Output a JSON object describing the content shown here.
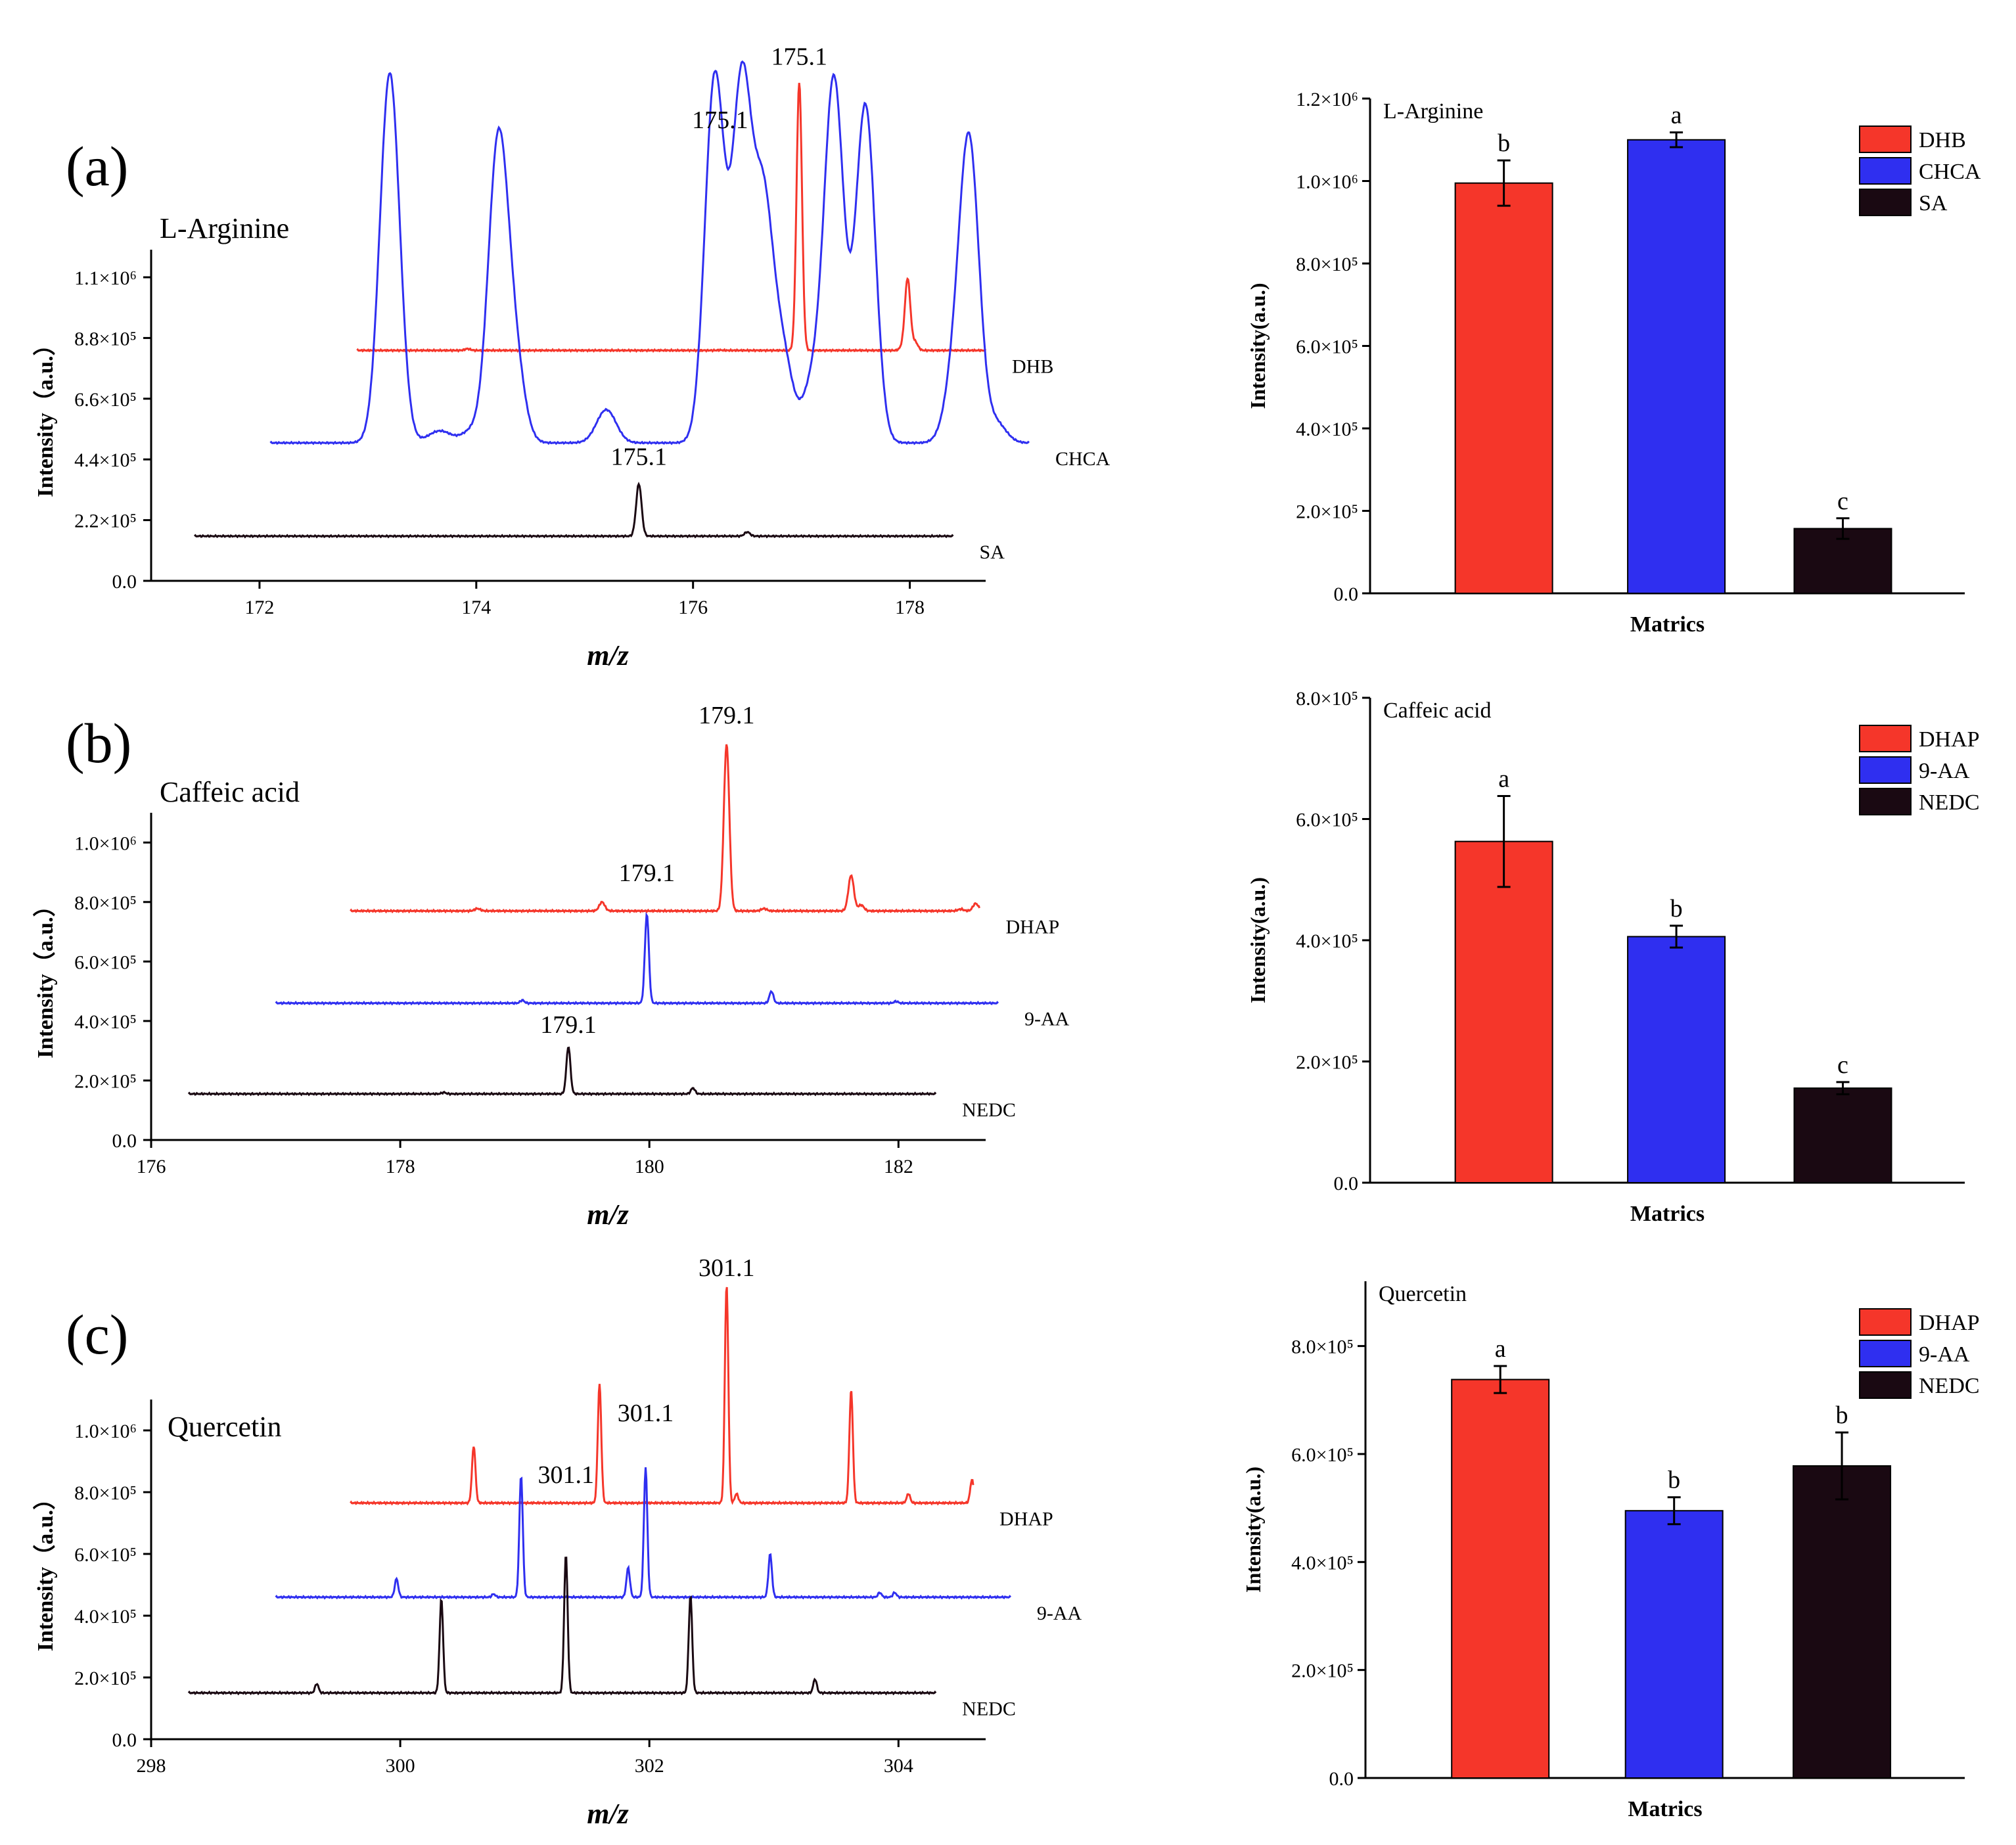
{
  "colors": {
    "red": "#f5362a",
    "blue": "#2f2ff0",
    "black": "#1a0912"
  },
  "panels": [
    {
      "label": "(a)",
      "compound": "L-Arginine",
      "spectrum": {
        "xlabel": "m/z",
        "ylabel": "Intensity（a.u.）",
        "xlim": [
          171,
          178.7
        ],
        "ylim": [
          0,
          1200000
        ],
        "xticks": [
          "172",
          "174",
          "176",
          "178"
        ],
        "xtick_values": [
          172,
          174,
          176,
          178
        ],
        "yticks": [
          "0.0",
          "2.2×10⁵",
          "4.4×10⁵",
          "6.6×10⁵",
          "8.8×10⁵",
          "1.1×10⁶"
        ],
        "ytick_values": [
          0,
          220000,
          440000,
          660000,
          880000,
          1100000
        ],
        "traces": [
          {
            "name": "DHB",
            "color": "red",
            "x_start": 172.9,
            "x_end": 178.7,
            "baseline": 835000,
            "width": 0.025,
            "peaks": [
              [
                173.92,
                6000
              ],
              [
                176.25,
                1000
              ],
              [
                176.98,
                970000
              ],
              [
                177.93,
                10000
              ],
              [
                177.98,
                260000
              ],
              [
                178.05,
                30000
              ],
              [
                178.82,
                60000
              ],
              [
                178.9,
                20000
              ]
            ],
            "peak_label": {
              "text": "175.1",
              "x": 176.98,
              "y": 1870000
            }
          },
          {
            "name": "CHCA",
            "color": "blue",
            "x_start": 172.1,
            "x_end": 179.1,
            "baseline": 500000,
            "width": 0.09,
            "peaks": [
              [
                173.2,
                1280000
              ],
              [
                173.25,
                70000
              ],
              [
                173.6,
                20000
              ],
              [
                173.7,
                30000
              ],
              [
                173.95,
                40000
              ],
              [
                174.2,
                1060000
              ],
              [
                174.35,
                290000
              ],
              [
                175.2,
                120000
              ],
              [
                176.2,
                1320000
              ],
              [
                176.45,
                1280000
              ],
              [
                176.65,
                830000
              ],
              [
                176.83,
                300000
              ],
              [
                177.3,
                1310000
              ],
              [
                177.1,
                200000
              ],
              [
                177.58,
                590000
              ],
              [
                177.6,
                640000
              ],
              [
                178.41,
                200000
              ],
              [
                178.55,
                1060000
              ],
              [
                178.8,
                70000
              ]
            ],
            "peak_label": {
              "text": "175.1",
              "x": 176.25,
              "y": 1640000
            }
          },
          {
            "name": "SA",
            "color": "black",
            "x_start": 171.4,
            "x_end": 178.4,
            "baseline": 162000,
            "width": 0.025,
            "peaks": [
              [
                175.5,
                190000
              ],
              [
                176.5,
                15000
              ]
            ],
            "peak_label": {
              "text": "175.1",
              "x": 175.5,
              "y": 420000
            }
          }
        ]
      },
      "bars": {
        "xlabel": "Matrics",
        "ylabel": "Intensity(a.u.)",
        "ylim": [
          0,
          1200000
        ],
        "yticks": [
          "0.0",
          "2.0×10⁵",
          "4.0×10⁵",
          "6.0×10⁵",
          "8.0×10⁵",
          "1.0×10⁶",
          "1.2×10⁶"
        ],
        "ytick_values": [
          0,
          200000,
          400000,
          600000,
          800000,
          1000000,
          1200000
        ],
        "legend": [
          "DHB",
          "CHCA",
          "SA"
        ],
        "legend_position": "top-right",
        "values": [
          995000,
          1100000,
          157000
        ],
        "errors": [
          55000,
          18000,
          25000
        ],
        "letters": [
          "b",
          "a",
          "c"
        ]
      }
    },
    {
      "label": "(b)",
      "compound": "Caffeic acid",
      "spectrum": {
        "xlabel": "m/z",
        "ylabel": "Intensity（a.u.）",
        "xlim": [
          176,
          182.7
        ],
        "ylim": [
          0,
          1100000
        ],
        "xticks": [
          "176",
          "178",
          "180",
          "182"
        ],
        "xtick_values": [
          176,
          178,
          180,
          182
        ],
        "yticks": [
          "0.0",
          "2.0×10⁵",
          "4.0×10⁵",
          "6.0×10⁵",
          "8.0×10⁵",
          "1.0×10⁶"
        ],
        "ytick_values": [
          0,
          200000,
          400000,
          600000,
          800000,
          1000000
        ],
        "traces": [
          {
            "name": "DHAP",
            "color": "red",
            "x_start": 177.6,
            "x_end": 182.65,
            "baseline": 770000,
            "width": 0.022,
            "peaks": [
              [
                178.62,
                8000
              ],
              [
                179.62,
                30000
              ],
              [
                180.62,
                560000
              ],
              [
                180.92,
                8000
              ],
              [
                181.62,
                120000
              ],
              [
                181.7,
                20000
              ],
              [
                182.5,
                6000
              ],
              [
                182.62,
                25000
              ]
            ],
            "peak_label": {
              "text": "179.1",
              "x": 180.62,
              "y": 1400000
            }
          },
          {
            "name": "9-AA",
            "color": "blue",
            "x_start": 177,
            "x_end": 182.8,
            "baseline": 460000,
            "width": 0.016,
            "peaks": [
              [
                178.98,
                10000
              ],
              [
                179.98,
                300000
              ],
              [
                180.98,
                40000
              ],
              [
                181.98,
                6000
              ]
            ],
            "peak_label": {
              "text": "179.1",
              "x": 179.98,
              "y": 870000
            }
          },
          {
            "name": "NEDC",
            "color": "black",
            "x_start": 176.3,
            "x_end": 182.3,
            "baseline": 155000,
            "width": 0.016,
            "peaks": [
              [
                178.35,
                5000
              ],
              [
                179.35,
                160000
              ],
              [
                180.35,
                20000
              ]
            ],
            "peak_label": {
              "text": "179.1",
              "x": 179.35,
              "y": 360000
            }
          }
        ]
      },
      "bars": {
        "xlabel": "Matrics",
        "ylabel": "Intensity(a.u.)",
        "ylim": [
          0,
          800000
        ],
        "yticks": [
          "0.0",
          "2.0×10⁵",
          "4.0×10⁵",
          "6.0×10⁵",
          "8.0×10⁵"
        ],
        "ytick_values": [
          0,
          200000,
          400000,
          600000,
          800000
        ],
        "legend": [
          "DHAP",
          "9-AA",
          "NEDC"
        ],
        "legend_position": "top-right",
        "values": [
          563000,
          406000,
          156000
        ],
        "errors": [
          75000,
          18000,
          10000
        ],
        "letters": [
          "a",
          "b",
          "c"
        ]
      }
    },
    {
      "label": "(c)",
      "compound": "Quercetin",
      "spectrum": {
        "xlabel": "m/z",
        "ylabel": "Intensity（a.u.）",
        "xlim": [
          298,
          304.7
        ],
        "ylim": [
          0,
          1100000
        ],
        "xticks": [
          "298",
          "300",
          "302",
          "304"
        ],
        "xtick_values": [
          298,
          300,
          302,
          304
        ],
        "yticks": [
          "0.0",
          "2.0×10⁵",
          "4.0×10⁵",
          "6.0×10⁵",
          "8.0×10⁵",
          "1.0×10⁶"
        ],
        "ytick_values": [
          0,
          200000,
          400000,
          600000,
          800000,
          1000000
        ],
        "traces": [
          {
            "name": "DHAP",
            "color": "red",
            "x_start": 299.6,
            "x_end": 304.6,
            "baseline": 765000,
            "width": 0.014,
            "peaks": [
              [
                300.59,
                185000
              ],
              [
                301.6,
                385000
              ],
              [
                302.62,
                705000
              ],
              [
                302.7,
                30000
              ],
              [
                303.62,
                365000
              ],
              [
                304.08,
                30000
              ],
              [
                304.59,
                75000
              ]
            ],
            "peak_label": {
              "text": "301.1",
              "x": 302.62,
              "y": 1500000
            }
          },
          {
            "name": "9-AA",
            "color": "blue",
            "x_start": 299,
            "x_end": 304.9,
            "baseline": 460000,
            "width": 0.014,
            "peaks": [
              [
                299.97,
                60000
              ],
              [
                300.75,
                10000
              ],
              [
                300.97,
                395000
              ],
              [
                301.83,
                95000
              ],
              [
                301.97,
                420000
              ],
              [
                302.97,
                140000
              ],
              [
                303.85,
                15000
              ],
              [
                303.97,
                15000
              ]
            ],
            "peak_label": {
              "text": "301.1",
              "x": 301.97,
              "y": 1030000
            }
          },
          {
            "name": "NEDC",
            "color": "black",
            "x_start": 298.3,
            "x_end": 304.3,
            "baseline": 150000,
            "width": 0.014,
            "peaks": [
              [
                299.33,
                30000
              ],
              [
                300.33,
                305000
              ],
              [
                301.33,
                450000
              ],
              [
                302.33,
                315000
              ],
              [
                303.33,
                45000
              ]
            ],
            "peak_label": {
              "text": "301.1",
              "x": 301.33,
              "y": 830000
            }
          }
        ]
      },
      "bars": {
        "xlabel": "Matrics",
        "ylabel": "Intensity(a.u.)",
        "ylim": [
          0,
          920000
        ],
        "yticks": [
          "0.0",
          "2.0×10⁵",
          "4.0×10⁵",
          "6.0×10⁵",
          "8.0×10⁵"
        ],
        "ytick_values": [
          0,
          200000,
          400000,
          600000,
          800000
        ],
        "legend": [
          "DHAP",
          "9-AA",
          "NEDC"
        ],
        "legend_position": "top-right",
        "values": [
          738000,
          495000,
          578000
        ],
        "errors": [
          25000,
          25000,
          62000
        ],
        "letters": [
          "a",
          "b",
          "b"
        ]
      }
    }
  ],
  "chart_data": [
    {
      "type": "line",
      "panel": "(a)",
      "title": "L-Arginine",
      "xlabel": "m/z",
      "ylabel": "Intensity（a.u.）",
      "xlim": [
        171,
        178.7
      ],
      "ylim": [
        0,
        1200000
      ],
      "series": [
        {
          "name": "DHB",
          "base_peak_mz": 176.98
        },
        {
          "name": "CHCA",
          "base_peak_mz": 176.25
        },
        {
          "name": "SA",
          "base_peak_mz": 175.5
        }
      ],
      "annotations": [
        "175.1",
        "175.1",
        "175.1"
      ]
    },
    {
      "type": "bar",
      "panel": "(a)",
      "title": "L-Arginine",
      "xlabel": "Matrics",
      "ylabel": "Intensity(a.u.)",
      "categories": [
        "DHB",
        "CHCA",
        "SA"
      ],
      "values": [
        995000,
        1100000,
        157000
      ],
      "errors": [
        55000,
        18000,
        25000
      ],
      "letters": [
        "b",
        "a",
        "c"
      ],
      "ylim": [
        0,
        1200000
      ]
    },
    {
      "type": "line",
      "panel": "(b)",
      "title": "Caffeic acid",
      "xlabel": "m/z",
      "ylabel": "Intensity（a.u.）",
      "xlim": [
        176,
        182.7
      ],
      "ylim": [
        0,
        1100000
      ],
      "series": [
        {
          "name": "DHAP",
          "base_peak_mz": 180.62
        },
        {
          "name": "9-AA",
          "base_peak_mz": 179.98
        },
        {
          "name": "NEDC",
          "base_peak_mz": 179.35
        }
      ],
      "annotations": [
        "179.1",
        "179.1",
        "179.1"
      ]
    },
    {
      "type": "bar",
      "panel": "(b)",
      "title": "Caffeic acid",
      "xlabel": "Matrics",
      "ylabel": "Intensity(a.u.)",
      "categories": [
        "DHAP",
        "9-AA",
        "NEDC"
      ],
      "values": [
        563000,
        406000,
        156000
      ],
      "errors": [
        75000,
        18000,
        10000
      ],
      "letters": [
        "a",
        "b",
        "c"
      ],
      "ylim": [
        0,
        800000
      ]
    },
    {
      "type": "line",
      "panel": "(c)",
      "title": "Quercetin",
      "xlabel": "m/z",
      "ylabel": "Intensity（a.u.）",
      "xlim": [
        298,
        304.7
      ],
      "ylim": [
        0,
        1100000
      ],
      "series": [
        {
          "name": "DHAP",
          "base_peak_mz": 302.62
        },
        {
          "name": "9-AA",
          "base_peak_mz": 301.97
        },
        {
          "name": "NEDC",
          "base_peak_mz": 301.33
        }
      ],
      "annotations": [
        "301.1",
        "301.1",
        "301.1"
      ]
    },
    {
      "type": "bar",
      "panel": "(c)",
      "title": "Quercetin",
      "xlabel": "Matrics",
      "ylabel": "Intensity(a.u.)",
      "categories": [
        "DHAP",
        "9-AA",
        "NEDC"
      ],
      "values": [
        738000,
        495000,
        578000
      ],
      "errors": [
        25000,
        25000,
        62000
      ],
      "letters": [
        "a",
        "b",
        "b"
      ],
      "ylim": [
        0,
        920000
      ]
    }
  ]
}
